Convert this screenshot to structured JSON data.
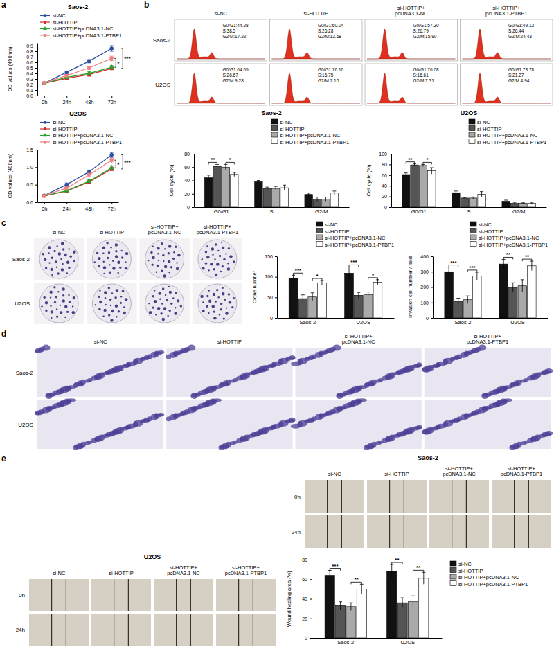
{
  "chart_data": [
    {
      "type": "line",
      "title": "Saos-2",
      "y_label": "OD values (490nm)",
      "categories": [
        "0h",
        "24h",
        "48h",
        "72h"
      ],
      "ylim": [
        0,
        0.95
      ],
      "yticks": [
        {
          "value": 0,
          "label": "0.0"
        },
        0.1,
        0.2,
        0.3,
        0.4,
        0.5,
        0.6,
        0.7,
        0.8,
        0.9
      ],
      "legend": "top-left",
      "series": [
        {
          "name": "si-NC",
          "color": "#2f4f9f",
          "marker": "circle",
          "values": [
            0.22,
            0.42,
            0.62,
            0.85
          ],
          "errors": [
            0.02,
            0.02,
            0.03,
            0.05
          ]
        },
        {
          "name": "si-HOTTIP",
          "color": "#d62728",
          "marker": "square",
          "values": [
            0.22,
            0.31,
            0.38,
            0.49
          ],
          "errors": [
            0.02,
            0.02,
            0.03,
            0.02
          ]
        },
        {
          "name": "si-HOTTIP+pcDNA3.1-NC",
          "color": "#2ca02c",
          "marker": "triangle",
          "values": [
            0.22,
            0.33,
            0.4,
            0.51
          ],
          "errors": [
            0.02,
            0.02,
            0.03,
            0.03
          ]
        },
        {
          "name": "si-HOTTIP+pcDNA3.1-PTBP1",
          "color": "#f08080",
          "marker": "triangle-down",
          "values": [
            0.23,
            0.36,
            0.5,
            0.67
          ],
          "errors": [
            0.02,
            0.02,
            0.03,
            0.04
          ]
        }
      ],
      "annotations": [
        {
          "text": "***",
          "category": "72h",
          "pair": [
            "si-NC",
            "si-HOTTIP"
          ]
        },
        {
          "text": "*",
          "category": "72h",
          "pair": [
            "si-HOTTIP+pcDNA3.1-PTBP1",
            "si-HOTTIP+pcDNA3.1-NC"
          ]
        }
      ]
    },
    {
      "type": "line",
      "title": "U2OS",
      "y_label": "OD values (490nm)",
      "categories": [
        "0h",
        "24h",
        "48h",
        "72h"
      ],
      "ylim": [
        0,
        1.5
      ],
      "yticks": [
        {
          "value": 0,
          "label": "0.0"
        },
        0.5,
        {
          "value": 1,
          "label": "1.0"
        },
        1.5
      ],
      "legend": "top-left",
      "series": [
        {
          "name": "si-NC",
          "color": "#2f4f9f",
          "marker": "circle",
          "values": [
            0.19,
            0.5,
            0.87,
            1.35
          ],
          "errors": [
            0.02,
            0.05,
            0.05,
            0.07
          ]
        },
        {
          "name": "si-HOTTIP",
          "color": "#d62728",
          "marker": "square",
          "values": [
            0.18,
            0.32,
            0.58,
            0.95
          ],
          "errors": [
            0.02,
            0.03,
            0.04,
            0.05
          ]
        },
        {
          "name": "si-HOTTIP+pcDNA3.1-NC",
          "color": "#2ca02c",
          "marker": "triangle",
          "values": [
            0.18,
            0.33,
            0.6,
            0.98
          ],
          "errors": [
            0.02,
            0.03,
            0.04,
            0.06
          ]
        },
        {
          "name": "si-HOTTIP+pcDNA3.1-PTBP1",
          "color": "#f08080",
          "marker": "triangle-down",
          "values": [
            0.19,
            0.4,
            0.78,
            1.2
          ],
          "errors": [
            0.02,
            0.03,
            0.05,
            0.05
          ]
        }
      ],
      "annotations": [
        {
          "text": "***",
          "category": "72h",
          "pair": [
            "si-NC",
            "si-HOTTIP"
          ]
        },
        {
          "text": "*",
          "category": "72h",
          "pair": [
            "si-HOTTIP+pcDNA3.1-PTBP1",
            "si-HOTTIP+pcDNA3.1-NC"
          ]
        }
      ]
    },
    {
      "type": "bar",
      "title": "Saos-2",
      "y_label": "Cell cycle (%)",
      "categories": [
        "G0/G1",
        "S",
        "G2/M"
      ],
      "ylim": [
        0,
        80
      ],
      "yticks": [
        0,
        20,
        40,
        60,
        80
      ],
      "legend": "top-right",
      "series": [
        {
          "name": "si-NC",
          "color": "#111111",
          "values": [
            44,
            38,
            19
          ],
          "errors": [
            4,
            2,
            2
          ]
        },
        {
          "name": "si-HOTTIP",
          "color": "#555555",
          "values": [
            61,
            28,
            12
          ],
          "errors": [
            3,
            2,
            3
          ]
        },
        {
          "name": "si-HOTTIP+pcDNA3.1-NC",
          "color": "#aaaaaa",
          "values": [
            60,
            28,
            12
          ],
          "errors": [
            4,
            3,
            3
          ]
        },
        {
          "name": "si-HOTTIP+pcDNA3.1-PTBP1",
          "color": "#ffffff",
          "values": [
            49,
            29,
            21
          ],
          "errors": [
            3,
            4,
            3
          ]
        }
      ],
      "annotations": [
        {
          "text": "**",
          "category": "G0/G1",
          "pair": [
            "si-NC",
            "si-HOTTIP"
          ]
        },
        {
          "text": "*",
          "category": "G0/G1",
          "pair": [
            "si-HOTTIP+pcDNA3.1-NC",
            "si-HOTTIP+pcDNA3.1-PTBP1"
          ]
        }
      ]
    },
    {
      "type": "bar",
      "title": "U2OS",
      "y_label": "Cell cycle (%)",
      "categories": [
        "G0/G1",
        "S",
        "G2/M"
      ],
      "ylim": [
        0,
        100
      ],
      "yticks": [
        0,
        20,
        40,
        60,
        80,
        100
      ],
      "legend": "top-right",
      "series": [
        {
          "name": "si-NC",
          "color": "#111111",
          "values": [
            61,
            27,
            11
          ],
          "errors": [
            3,
            3,
            2
          ]
        },
        {
          "name": "si-HOTTIP",
          "color": "#555555",
          "values": [
            79,
            17,
            7
          ],
          "errors": [
            2,
            1,
            2
          ]
        },
        {
          "name": "si-HOTTIP+pcDNA3.1-NC",
          "color": "#aaaaaa",
          "values": [
            78,
            17,
            7
          ],
          "errors": [
            2,
            2,
            1
          ]
        },
        {
          "name": "si-HOTTIP+pcDNA3.1-PTBP1",
          "color": "#ffffff",
          "values": [
            68,
            24,
            7
          ],
          "errors": [
            6,
            5,
            2
          ]
        }
      ],
      "annotations": [
        {
          "text": "**",
          "category": "G0/G1",
          "pair": [
            "si-NC",
            "si-HOTTIP"
          ]
        },
        {
          "text": "*",
          "category": "G0/G1",
          "pair": [
            "si-HOTTIP+pcDNA3.1-NC",
            "si-HOTTIP+pcDNA3.1-PTBP1"
          ]
        }
      ]
    },
    {
      "type": "bar",
      "y_label": "Clone number",
      "categories": [
        "Saos-2",
        "U2OS"
      ],
      "ylim": [
        0,
        150
      ],
      "yticks": [
        0,
        50,
        100,
        150
      ],
      "legend": "top-right",
      "series": [
        {
          "name": "si-NC",
          "color": "#111111",
          "values": [
            96,
            109
          ],
          "errors": [
            8,
            15
          ]
        },
        {
          "name": "si-HOTTIP",
          "color": "#555555",
          "values": [
            47,
            55
          ],
          "errors": [
            9,
            7
          ]
        },
        {
          "name": "si-HOTTIP+pcDNA3.1-NC",
          "color": "#aaaaaa",
          "values": [
            51,
            57
          ],
          "errors": [
            10,
            6
          ]
        },
        {
          "name": "si-HOTTIP+pcDNA3.1-PTBP1",
          "color": "#ffffff",
          "values": [
            85,
            87
          ],
          "errors": [
            6,
            6
          ]
        }
      ],
      "annotations": [
        {
          "text": "***",
          "category": "Saos-2",
          "pair": [
            "si-NC",
            "si-HOTTIP"
          ]
        },
        {
          "text": "*",
          "category": "Saos-2",
          "pair": [
            "si-HOTTIP+pcDNA3.1-NC",
            "si-HOTTIP+pcDNA3.1-PTBP1"
          ]
        },
        {
          "text": "***",
          "category": "U2OS",
          "pair": [
            "si-NC",
            "si-HOTTIP"
          ]
        },
        {
          "text": "*",
          "category": "U2OS",
          "pair": [
            "si-HOTTIP+pcDNA3.1-NC",
            "si-HOTTIP+pcDNA3.1-PTBP1"
          ]
        }
      ]
    },
    {
      "type": "bar",
      "y_label": "Invasion cell number / field",
      "categories": [
        "Saos-2",
        "U2OS"
      ],
      "ylim": [
        0,
        400
      ],
      "yticks": [
        0,
        100,
        200,
        300,
        400
      ],
      "legend": "top-right",
      "series": [
        {
          "name": "si-NC",
          "color": "#111111",
          "values": [
            300,
            350
          ],
          "errors": [
            30,
            30
          ]
        },
        {
          "name": "si-HOTTIP",
          "color": "#555555",
          "values": [
            108,
            198
          ],
          "errors": [
            20,
            30
          ]
        },
        {
          "name": "si-HOTTIP+pcDNA3.1-NC",
          "color": "#aaaaaa",
          "values": [
            118,
            208
          ],
          "errors": [
            25,
            40
          ]
        },
        {
          "name": "si-HOTTIP+pcDNA3.1-PTBP1",
          "color": "#ffffff",
          "values": [
            272,
            338
          ],
          "errors": [
            25,
            30
          ]
        }
      ],
      "annotations": [
        {
          "text": "***",
          "category": "Saos-2",
          "pair": [
            "si-NC",
            "si-HOTTIP"
          ]
        },
        {
          "text": "***",
          "category": "Saos-2",
          "pair": [
            "si-HOTTIP+pcDNA3.1-NC",
            "si-HOTTIP+pcDNA3.1-PTBP1"
          ]
        },
        {
          "text": "**",
          "category": "U2OS",
          "pair": [
            "si-NC",
            "si-HOTTIP"
          ]
        },
        {
          "text": "**",
          "category": "U2OS",
          "pair": [
            "si-HOTTIP+pcDNA3.1-NC",
            "si-HOTTIP+pcDNA3.1-PTBP1"
          ]
        }
      ]
    },
    {
      "type": "bar",
      "y_label": "Wound healing area (%)",
      "categories": [
        "Saos-2",
        "U2OS"
      ],
      "ylim": [
        0,
        80
      ],
      "yticks": [
        0,
        20,
        40,
        60,
        80
      ],
      "legend": "right",
      "series": [
        {
          "name": "si-NC",
          "color": "#111111",
          "values": [
            64,
            68
          ],
          "errors": [
            5,
            7
          ]
        },
        {
          "name": "si-HOTTIP",
          "color": "#555555",
          "values": [
            33,
            36
          ],
          "errors": [
            4,
            5
          ]
        },
        {
          "name": "si-HOTTIP+pcDNA3.1-NC",
          "color": "#aaaaaa",
          "values": [
            32,
            37
          ],
          "errors": [
            4,
            6
          ]
        },
        {
          "name": "si-HOTTIP+pcDNA3.1-PTBP1",
          "color": "#ffffff",
          "values": [
            50,
            61
          ],
          "errors": [
            5,
            6
          ]
        }
      ],
      "annotations": [
        {
          "text": "***",
          "category": "Saos-2",
          "pair": [
            "si-NC",
            "si-HOTTIP"
          ]
        },
        {
          "text": "**",
          "category": "Saos-2",
          "pair": [
            "si-HOTTIP+pcDNA3.1-NC",
            "si-HOTTIP+pcDNA3.1-PTBP1"
          ]
        },
        {
          "text": "**",
          "category": "U2OS",
          "pair": [
            "si-NC",
            "si-HOTTIP"
          ]
        },
        {
          "text": "**",
          "category": "U2OS",
          "pair": [
            "si-HOTTIP+pcDNA3.1-NC",
            "si-HOTTIP+pcDNA3.1-PTBP1"
          ]
        }
      ]
    }
  ],
  "figure": {
    "panel_labels": [
      "a",
      "b",
      "c",
      "d",
      "e"
    ],
    "flow": {
      "columns": [
        [
          "si-NC"
        ],
        [
          "si-HOTTIP"
        ],
        [
          "si-HOTTIP+",
          "pcDNA3.1-NC"
        ],
        [
          "si-HOTTIP+",
          "pcDNA3.1-PTBP1"
        ]
      ],
      "rows": [
        {
          "label": "Saos-2",
          "cells": [
            [
              "G0/G1:44.28",
              "S:38.5",
              "G2/M:17.22"
            ],
            [
              "G0/G1:60.04",
              "S:26.28",
              "G2/M:13.68"
            ],
            [
              "G0/G1:57.30",
              "S:26.79",
              "G2/M:15.90"
            ],
            [
              "G0/G1:49.13",
              "S:26.44",
              "G2/M:24.43"
            ]
          ]
        },
        {
          "label": "U2OS",
          "cells": [
            [
              "G0/G1:64.05",
              "S:26.67",
              "G2/M:9.28"
            ],
            [
              "G0/G1:76.16",
              "S:16.75",
              "G2/M:7.10"
            ],
            [
              "G0/G1:76.08",
              "S:16.61",
              "G2/M:7.31"
            ],
            [
              "G0/G1:73.78",
              "S:21.27",
              "G2/M:4.94"
            ]
          ]
        }
      ]
    },
    "colony": {
      "columns": [
        [
          "si-NC"
        ],
        [
          "si-HOTTIP"
        ],
        [
          "si-HOTTIP+",
          "pcDNA3.1-NC"
        ],
        [
          "si-HOTTIP+",
          "pcDNA3.1-PTBP1"
        ]
      ],
      "rows": [
        "Saos-2",
        "U2OS"
      ]
    },
    "invasion": {
      "columns": [
        [
          "si-NC"
        ],
        [
          "si-HOTTIP"
        ],
        [
          "si-HOTTIP+",
          "pcDNA3.1-NC"
        ],
        [
          "si-HOTTIP+",
          "pcDNA3.1-PTBP1"
        ]
      ],
      "rows": [
        "Saos-2",
        "U2OS"
      ]
    },
    "wound": [
      {
        "title": "Saos-2",
        "columns": [
          [
            "si-NC"
          ],
          [
            "si-HOTTIP"
          ],
          [
            "si-HOTTIP+",
            "pcDNA3.1-NC"
          ],
          [
            "si-HOTTIP+",
            "pcDNA3.1-PTBP1"
          ]
        ],
        "rows": [
          "0h",
          "24h"
        ]
      },
      {
        "title": "U2OS",
        "columns": [
          [
            "si-NC"
          ],
          [
            "si-HOTTIP"
          ],
          [
            "si-HOTTIP+",
            "pcDNA3.1-NC"
          ],
          [
            "si-HOTTIP+",
            "pcDNA3.1-PTBP1"
          ]
        ],
        "rows": [
          "0h",
          "24h"
        ]
      }
    ]
  }
}
